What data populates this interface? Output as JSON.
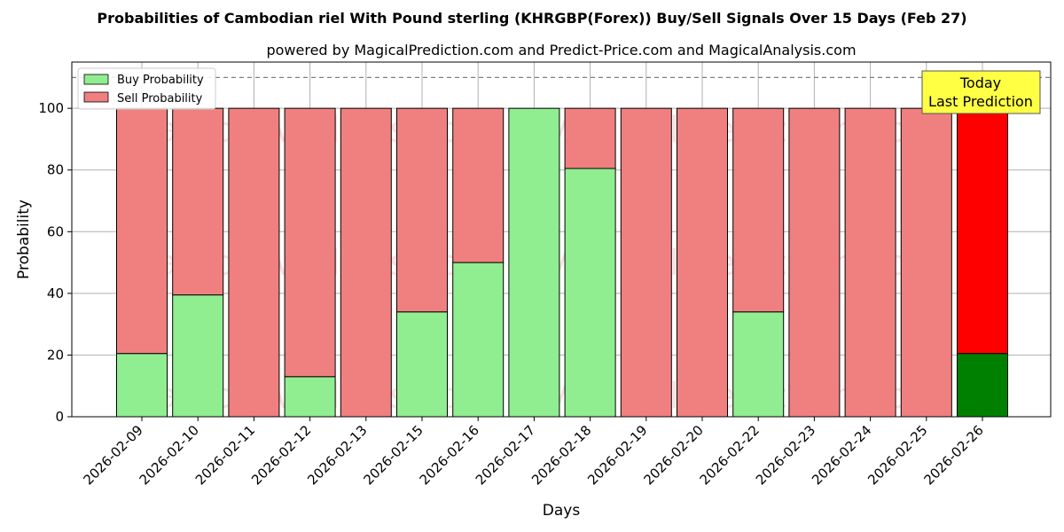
{
  "chart_data": {
    "type": "bar",
    "stacked": true,
    "title": "Probabilities of Cambodian riel With Pound sterling (KHRGBP(Forex)) Buy/Sell Signals Over 15 Days (Feb 27)",
    "subtitle": "powered by MagicalPrediction.com and Predict-Price.com and MagicalAnalysis.com",
    "xlabel": "Days",
    "ylabel": "Probability",
    "ylim": [
      0,
      115
    ],
    "yticks": [
      0,
      20,
      40,
      60,
      80,
      100
    ],
    "grid": true,
    "legend_position": "top-left",
    "categories": [
      "2026-02-09",
      "2026-02-10",
      "2026-02-11",
      "2026-02-12",
      "2026-02-13",
      "2026-02-15",
      "2026-02-16",
      "2026-02-17",
      "2026-02-18",
      "2026-02-19",
      "2026-02-20",
      "2026-02-22",
      "2026-02-23",
      "2026-02-24",
      "2026-02-25",
      "2026-02-26"
    ],
    "series": [
      {
        "name": "Buy Probability",
        "color": "#90ee90",
        "values": [
          20.5,
          39.5,
          0,
          13,
          0,
          34,
          50,
          100,
          80.5,
          0,
          0,
          34,
          0,
          0,
          0,
          20.5
        ]
      },
      {
        "name": "Sell Probability",
        "color": "#f08080",
        "values": [
          79.5,
          60.5,
          100,
          87,
          100,
          66,
          50,
          0,
          19.5,
          100,
          100,
          66,
          100,
          100,
          100,
          79.5
        ]
      }
    ],
    "highlight": {
      "index": 15,
      "buy_color": "#008000",
      "sell_color": "#ff0000"
    },
    "reference_line": {
      "y": 110,
      "style": "dashed",
      "color": "#808080"
    },
    "annotation": {
      "lines": [
        "Today",
        "Last Prediction"
      ],
      "background": "#ffff44"
    },
    "watermarks": [
      "MagicalAnalysis.com",
      "MagicalPrediction.com"
    ]
  }
}
